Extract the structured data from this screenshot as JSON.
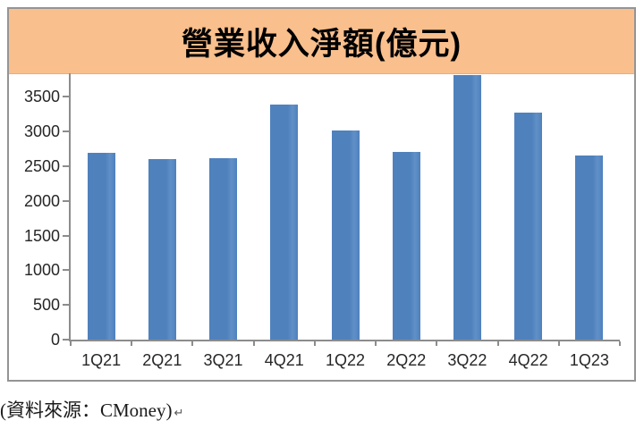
{
  "chart": {
    "colors": {
      "bar": "#4F81BD",
      "title_bg": "#F9BF8C",
      "axis": "#8C8C8C",
      "border": "#949494",
      "tick_label": "#262626"
    }
  },
  "chart_data": {
    "type": "bar",
    "title": "營業收入淨額(億元)",
    "categories": [
      "1Q21",
      "2Q21",
      "3Q21",
      "4Q21",
      "1Q22",
      "2Q22",
      "3Q22",
      "4Q22",
      "1Q23"
    ],
    "values": [
      2690,
      2600,
      2610,
      3390,
      3010,
      2700,
      3810,
      3270,
      2650
    ],
    "xlabel": "",
    "ylabel": "",
    "ylim": [
      0,
      3840
    ],
    "yticks": [
      0,
      500,
      1000,
      1500,
      2000,
      2500,
      3000,
      3500
    ],
    "grid": false,
    "legend": false
  },
  "footer": {
    "text": "(資料來源：CMoney)",
    "mark": "↵"
  }
}
